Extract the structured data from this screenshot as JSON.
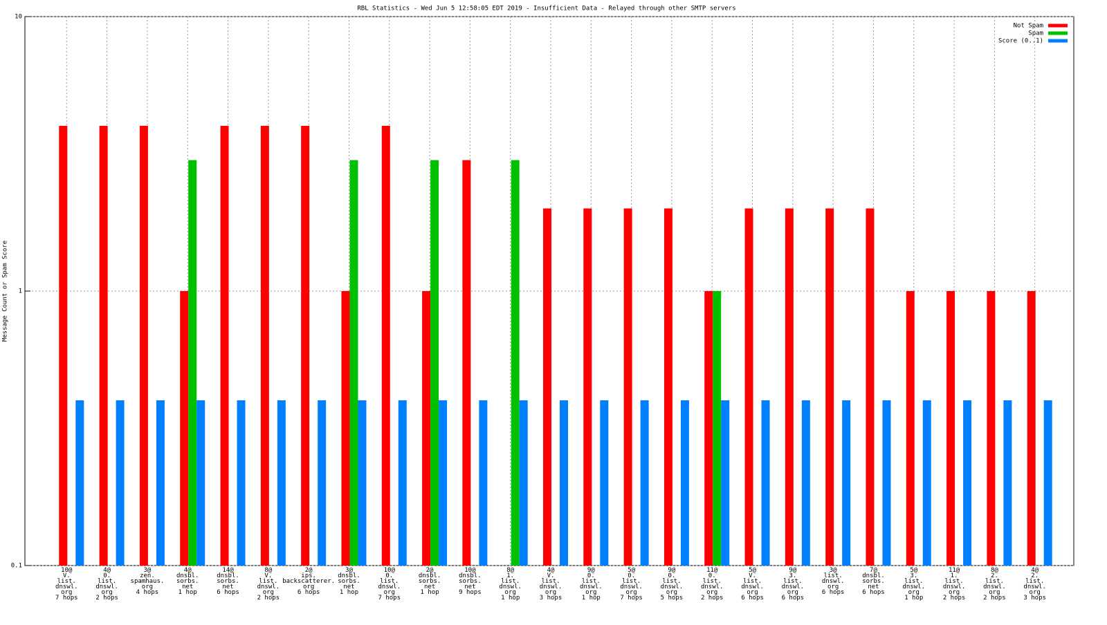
{
  "chart_data": {
    "type": "bar",
    "title": "RBL Statistics - Wed Jun  5 12:58:05 EDT 2019 - Insufficient Data - Relayed through other SMTP servers",
    "y_label": "Message Count or Spam Score",
    "log_scale": true,
    "grid": true,
    "legend": "top-right",
    "ylim": [
      0.1,
      10
    ],
    "yticks": [
      0.1,
      1,
      10
    ],
    "categories": [
      [
        "10@",
        "V.",
        "list.",
        "dnswl.",
        "org",
        "7 hops"
      ],
      [
        "4@",
        "0.",
        "list.",
        "dnswl.",
        "org",
        "2 hops"
      ],
      [
        "3@",
        "zen.",
        "spamhaus.",
        "org",
        "4 hops"
      ],
      [
        "4@",
        "dnsbl.",
        "sorbs.",
        "net",
        "1 hop"
      ],
      [
        "14@",
        "dnsbl.",
        "sorbs.",
        "net",
        "6 hops"
      ],
      [
        "8@",
        "V.",
        "list.",
        "dnswl.",
        "org",
        "2 hops"
      ],
      [
        "2@",
        "ips.",
        "backscatterer.",
        "org",
        "6 hops"
      ],
      [
        "3@",
        "dnsbl.",
        "sorbs.",
        "net",
        "1 hop"
      ],
      [
        "10@",
        "0.",
        "list.",
        "dnswl.",
        "org",
        "7 hops"
      ],
      [
        "2@",
        "dnsbl.",
        "sorbs.",
        "net",
        "1 hop"
      ],
      [
        "10@",
        "dnsbl.",
        "sorbs.",
        "net",
        "9 hops"
      ],
      [
        "8@",
        "1.",
        "list.",
        "dnswl.",
        "org",
        "1 hop"
      ],
      [
        "4@",
        "V.",
        "list.",
        "dnswl.",
        "org",
        "3 hops"
      ],
      [
        "9@",
        "0.",
        "list.",
        "dnswl.",
        "org",
        "1 hop"
      ],
      [
        "5@",
        "0.",
        "list.",
        "dnswl.",
        "org",
        "7 hops"
      ],
      [
        "9@",
        "0.",
        "list.",
        "dnswl.",
        "org",
        "5 hops"
      ],
      [
        "11@",
        "0.",
        "list.",
        "dnswl.",
        "org",
        "2 hops"
      ],
      [
        "5@",
        "V.",
        "list.",
        "dnswl.",
        "org",
        "6 hops"
      ],
      [
        "9@",
        "3.",
        "list.",
        "dnswl.",
        "org",
        "6 hops"
      ],
      [
        "3@",
        "list.",
        "dnswl.",
        "org",
        "6 hops"
      ],
      [
        "7@",
        "dnsbl.",
        "sorbs.",
        "net",
        "6 hops"
      ],
      [
        "5@",
        "3.",
        "list.",
        "dnswl.",
        "org",
        "1 hop"
      ],
      [
        "11@",
        "1.",
        "list.",
        "dnswl.",
        "org",
        "2 hops"
      ],
      [
        "8@",
        "2.",
        "list.",
        "dnswl.",
        "org",
        "2 hops"
      ],
      [
        "4@",
        "2.",
        "list.",
        "dnswl.",
        "org",
        "3 hops"
      ]
    ],
    "series": [
      {
        "name": "Not Spam",
        "color": "#ff0000",
        "values": [
          4,
          4,
          4,
          1,
          4,
          4,
          4,
          1,
          4,
          1,
          3,
          null,
          2,
          2,
          2,
          2,
          1,
          2,
          2,
          2,
          2,
          1,
          1,
          1,
          1
        ]
      },
      {
        "name": "Spam",
        "color": "#00c000",
        "values": [
          null,
          null,
          null,
          3,
          null,
          null,
          null,
          3,
          null,
          3,
          null,
          3,
          null,
          null,
          null,
          null,
          1,
          null,
          null,
          null,
          null,
          null,
          null,
          null,
          null
        ]
      },
      {
        "name": "Score (0..1)",
        "color": "#0080ff",
        "values": [
          0.4,
          0.4,
          0.4,
          0.4,
          0.4,
          0.4,
          0.4,
          0.4,
          0.4,
          0.4,
          0.4,
          0.4,
          0.4,
          0.4,
          0.4,
          0.4,
          0.4,
          0.4,
          0.4,
          0.4,
          0.4,
          0.4,
          0.4,
          0.4,
          0.4
        ]
      }
    ]
  }
}
